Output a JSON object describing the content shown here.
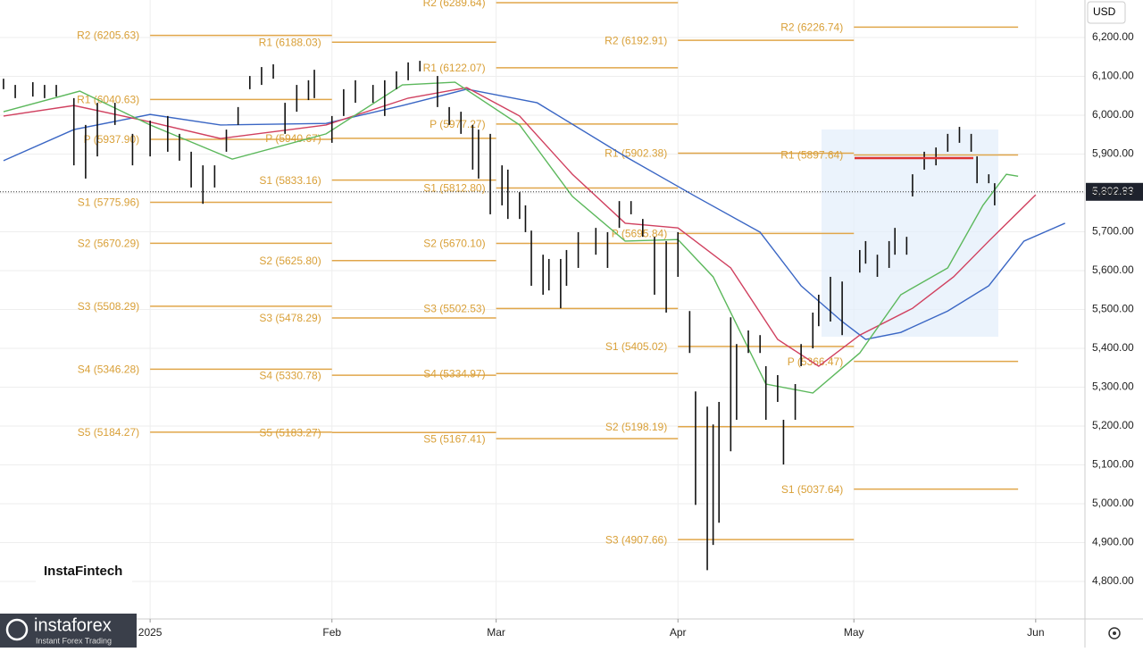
{
  "chart_data": {
    "type": "ohlc",
    "currency": "USD",
    "grid": true,
    "xlim": [
      -25.6,
      159.4
    ],
    "ylim": [
      4703.4,
      6296.6
    ],
    "xticks": [
      {
        "value": 0,
        "label": "2025"
      },
      {
        "value": 31,
        "label": "Feb"
      },
      {
        "value": 59,
        "label": "Mar"
      },
      {
        "value": 90,
        "label": "Apr"
      },
      {
        "value": 120,
        "label": "May"
      },
      {
        "value": 151,
        "label": "Jun"
      }
    ],
    "yticks": [
      {
        "value": 6200,
        "label": "6,200.00"
      },
      {
        "value": 6100,
        "label": "6,100.00"
      },
      {
        "value": 6000,
        "label": "6,000.00"
      },
      {
        "value": 5900,
        "label": "5,900.00"
      },
      {
        "value": 5800,
        "label": "5,800.00"
      },
      {
        "value": 5700,
        "label": "5,700.00"
      },
      {
        "value": 5600,
        "label": "5,600.00"
      },
      {
        "value": 5500,
        "label": "5,500.00"
      },
      {
        "value": 5400,
        "label": "5,400.00"
      },
      {
        "value": 5300,
        "label": "5,300.00"
      },
      {
        "value": 5200,
        "label": "5,200.00"
      },
      {
        "value": 5100,
        "label": "5,100.00"
      },
      {
        "value": 5000,
        "label": "5,000.00"
      },
      {
        "value": 4900,
        "label": "4,900.00"
      },
      {
        "value": 4800,
        "label": "4,800.00"
      }
    ],
    "last_price": {
      "value": 5802.83,
      "label": "5,802.83"
    },
    "bars": {
      "color": "#111111",
      "x": [
        -25,
        -23,
        -20,
        -18,
        -16,
        -13,
        -11,
        -9,
        -6,
        -3,
        0,
        3,
        5,
        7,
        9,
        11,
        13,
        15,
        17,
        19,
        21,
        23,
        25,
        27,
        28,
        31,
        33,
        35,
        38,
        40,
        42,
        44,
        46,
        49,
        51,
        53,
        55,
        56,
        58,
        60,
        61,
        63,
        64,
        65,
        67,
        68,
        70,
        71,
        73,
        76,
        78,
        80,
        82,
        84,
        86,
        88,
        90,
        92,
        93,
        95,
        96,
        97,
        99,
        100,
        102,
        104,
        105,
        107,
        108,
        110,
        111,
        113,
        114,
        116,
        118,
        121,
        122,
        124,
        126,
        127,
        129,
        130,
        132,
        134,
        136,
        138,
        140,
        141,
        143,
        144
      ],
      "high": [
        6094,
        6078,
        6085,
        6078,
        6078,
        6044,
        5975,
        6032,
        6032,
        5952,
        5986,
        5998,
        5952,
        5906,
        5871,
        5871,
        5963,
        6021,
        6101,
        6124,
        6131,
        6032,
        6078,
        6090,
        6117,
        5998,
        6067,
        6090,
        6078,
        6090,
        6113,
        6136,
        6140,
        6101,
        6021,
        6009,
        5975,
        5963,
        5952,
        5871,
        5860,
        5802,
        5768,
        5703,
        5641,
        5630,
        5630,
        5653,
        5699,
        5710,
        5699,
        5779,
        5779,
        5733,
        5687,
        5676,
        5699,
        5496,
        5289,
        5250,
        5204,
        5262,
        5480,
        5411,
        5446,
        5434,
        5354,
        5331,
        5216,
        5308,
        5411,
        5492,
        5538,
        5584,
        5572,
        5653,
        5676,
        5641,
        5676,
        5710,
        5687,
        5848,
        5906,
        5917,
        5952,
        5970,
        5952,
        5894,
        5848,
        5825
      ],
      "low": [
        6067,
        6044,
        6048,
        6044,
        6048,
        5871,
        5837,
        5894,
        5975,
        5871,
        5894,
        5906,
        5883,
        5814,
        5772,
        5814,
        5906,
        5975,
        6067,
        6078,
        6094,
        5952,
        6009,
        6039,
        6044,
        5929,
        5998,
        6032,
        6032,
        5998,
        6067,
        6090,
        6113,
        6021,
        5975,
        5952,
        5860,
        5837,
        5745,
        5768,
        5733,
        5733,
        5699,
        5561,
        5538,
        5549,
        5503,
        5561,
        5607,
        5641,
        5607,
        5710,
        5745,
        5687,
        5538,
        5492,
        5584,
        5388,
        4997,
        4829,
        4894,
        4951,
        5135,
        5216,
        5388,
        5388,
        5216,
        5262,
        5101,
        5216,
        5354,
        5400,
        5457,
        5469,
        5434,
        5595,
        5618,
        5584,
        5607,
        5641,
        5641,
        5791,
        5860,
        5871,
        5906,
        5929,
        5906,
        5825,
        5825,
        5768
      ]
    },
    "series": [
      {
        "color": "#3a66c4",
        "x": [
          -25,
          -13,
          0,
          12,
          30,
          43,
          54,
          66,
          81,
          93,
          104,
          111,
          118,
          122,
          128,
          136,
          143,
          149,
          156
        ],
        "values": [
          5883,
          5963,
          6002,
          5975,
          5979,
          6025,
          6067,
          6032,
          5894,
          5791,
          5699,
          5561,
          5469,
          5423,
          5441,
          5496,
          5561,
          5676,
          5722
        ]
      },
      {
        "color": "#d0405f",
        "x": [
          -25,
          -13,
          -1,
          12,
          30,
          44,
          54,
          63,
          72,
          81,
          90,
          99,
          107,
          114,
          121,
          130,
          137,
          143,
          151
        ],
        "values": [
          5998,
          6025,
          5986,
          5940,
          5975,
          6044,
          6071,
          5998,
          5848,
          5722,
          5710,
          5607,
          5423,
          5354,
          5434,
          5503,
          5584,
          5676,
          5795
        ]
      },
      {
        "color": "#5cb85c",
        "x": [
          -25,
          -12,
          0,
          14,
          30,
          43,
          52,
          63,
          72,
          81,
          90,
          96,
          105,
          113,
          121,
          128,
          136,
          142,
          146,
          148
        ],
        "values": [
          6009,
          6062,
          5975,
          5887,
          5952,
          6078,
          6085,
          5975,
          5791,
          5676,
          5680,
          5584,
          5308,
          5285,
          5388,
          5538,
          5607,
          5768,
          5848,
          5843
        ]
      }
    ],
    "pivot_color": "#e0a64a",
    "pivot_levels": [
      {
        "x": [
          0,
          31
        ],
        "levels": [
          {
            "label": "R2 (6205.63)",
            "value": 6205.63
          },
          {
            "label": "R1 (6040.63)",
            "value": 6040.63
          },
          {
            "label": "P (5937.90)",
            "value": 5937.9
          },
          {
            "label": "S1 (5775.96)",
            "value": 5775.96
          },
          {
            "label": "S2 (5670.29)",
            "value": 5670.29
          },
          {
            "label": "S3 (5508.29)",
            "value": 5508.29
          },
          {
            "label": "S4 (5346.28)",
            "value": 5346.28
          },
          {
            "label": "S5 (5184.27)",
            "value": 5184.27
          }
        ]
      },
      {
        "x": [
          31,
          59
        ],
        "levels": [
          {
            "label": "R1 (6188.03)",
            "value": 6188.03
          },
          {
            "label": "P (5940.67)",
            "value": 5940.67
          },
          {
            "label": "S1 (5833.16)",
            "value": 5833.16
          },
          {
            "label": "S2 (5625.80)",
            "value": 5625.8
          },
          {
            "label": "S3 (5478.29)",
            "value": 5478.29
          },
          {
            "label": "S4 (5330.78)",
            "value": 5330.78
          },
          {
            "label": "S5 (5183.27)",
            "value": 5183.27
          }
        ]
      },
      {
        "x": [
          59,
          90
        ],
        "levels": [
          {
            "label": "R2 (6289.64)",
            "value": 6289.64
          },
          {
            "label": "R1 (6122.07)",
            "value": 6122.07
          },
          {
            "label": "P (5977.27)",
            "value": 5977.27
          },
          {
            "label": "S1 (5812.80)",
            "value": 5812.8
          },
          {
            "label": "S2 (5670.10)",
            "value": 5670.1
          },
          {
            "label": "S3 (5502.53)",
            "value": 5502.53
          },
          {
            "label": "S4 (5334.97)",
            "value": 5334.97
          },
          {
            "label": "S5 (5167.41)",
            "value": 5167.41
          }
        ]
      },
      {
        "x": [
          90,
          120
        ],
        "levels": [
          {
            "label": "R2 (6192.91)",
            "value": 6192.91
          },
          {
            "label": "R1 (5902.38)",
            "value": 5902.38
          },
          {
            "label": "P (5695.84)",
            "value": 5695.84
          },
          {
            "label": "S1 (5405.02)",
            "value": 5405.02
          },
          {
            "label": "S2 (5198.19)",
            "value": 5198.19
          },
          {
            "label": "S3 (4907.66)",
            "value": 4907.66
          }
        ]
      },
      {
        "x": [
          120,
          148
        ],
        "levels": [
          {
            "label": "R2 (6226.74)",
            "value": 6226.74
          },
          {
            "label": "R1 (5897.64)",
            "value": 5897.64
          },
          {
            "label": "P (5366.47)",
            "value": 5366.47
          },
          {
            "label": "S1 (5037.64)",
            "value": 5037.64
          }
        ]
      }
    ]
  },
  "branding": {
    "watermark": "InstaFintech",
    "logo": "instaforex",
    "tagline": "Instant Forex Trading"
  }
}
